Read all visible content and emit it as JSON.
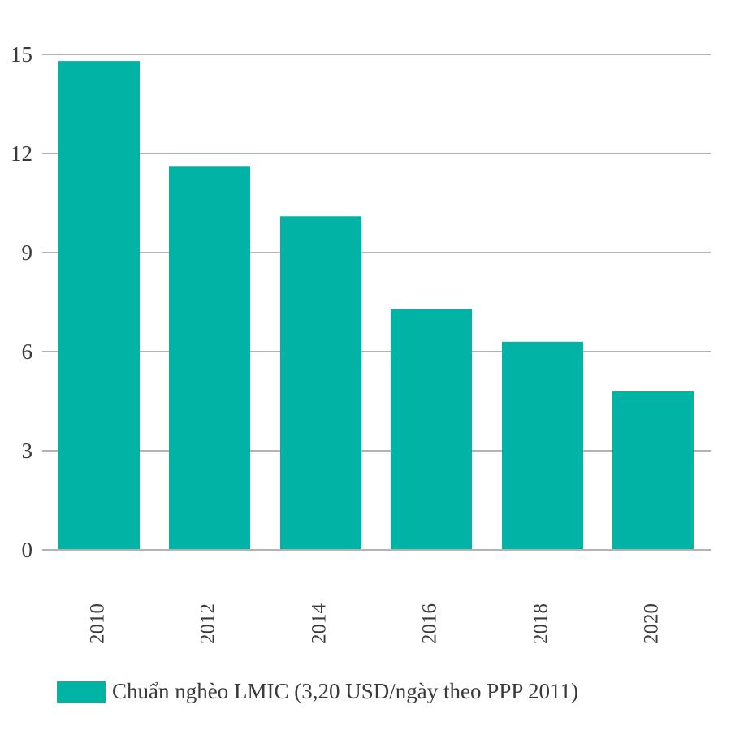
{
  "chart_data": {
    "type": "bar",
    "categories": [
      "2010",
      "2012",
      "2014",
      "2016",
      "2018",
      "2020"
    ],
    "series": [
      {
        "name": "Chuẩn nghèo LMIC (3,20 USD/ngày theo PPP 2011)",
        "values": [
          14.8,
          11.6,
          10.1,
          7.3,
          6.3,
          4.8
        ]
      }
    ],
    "ylim": [
      0,
      15
    ],
    "yticks": [
      "0",
      "3",
      "6",
      "9",
      "12",
      "15"
    ],
    "grid": true,
    "legend_position": "bottom-left",
    "colors": {
      "bar": "#00b3a4",
      "grid": "#b3b3b3",
      "text": "#3a3a3a"
    }
  }
}
